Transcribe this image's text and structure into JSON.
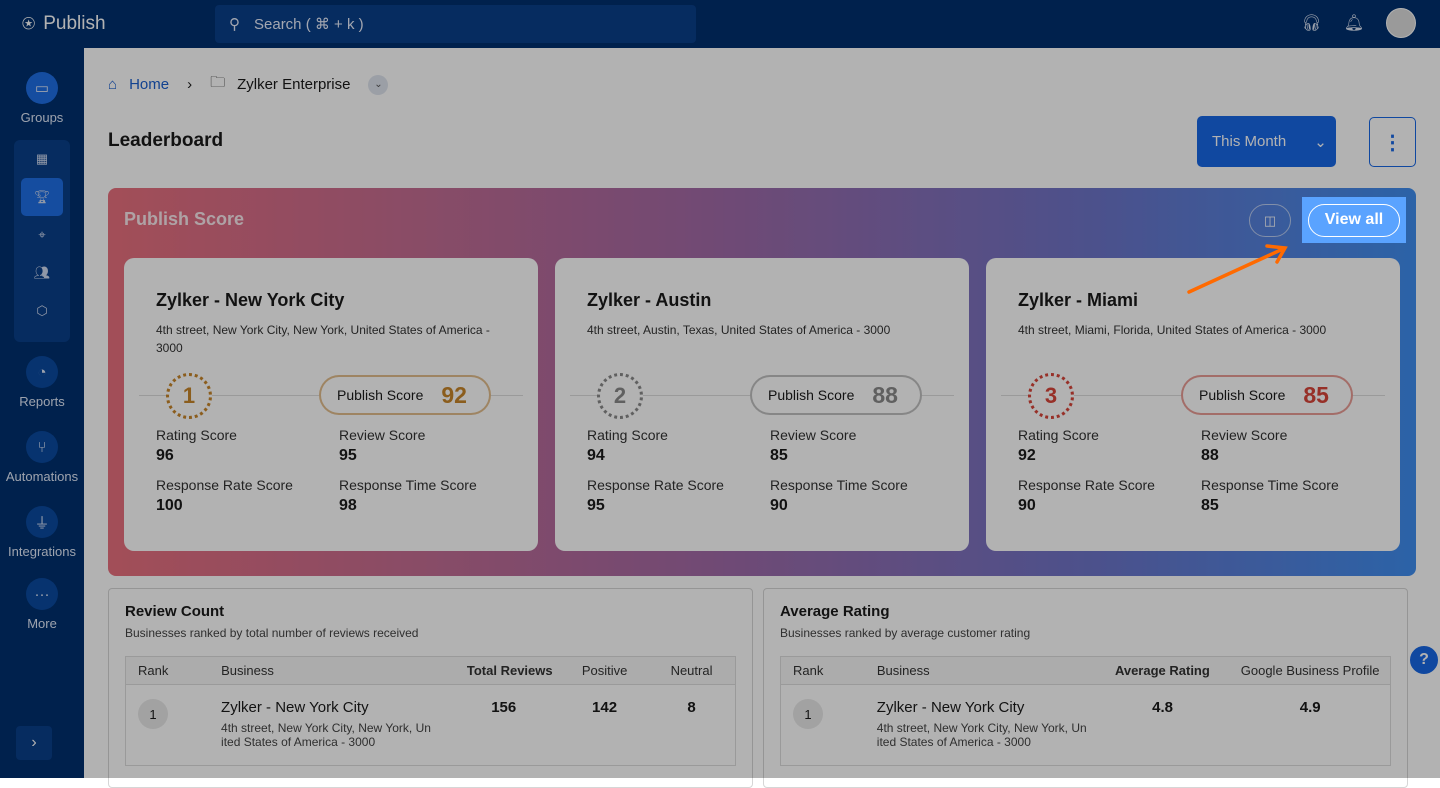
{
  "app": {
    "name": "Publish"
  },
  "search": {
    "placeholder": "Search ( ⌘ + k )"
  },
  "sidebar": {
    "items": [
      {
        "label": "Groups"
      },
      {
        "label": "Reports"
      },
      {
        "label": "Automations"
      },
      {
        "label": "Integrations"
      },
      {
        "label": "More"
      }
    ]
  },
  "breadcrumb": {
    "home": "Home",
    "current": "Zylker Enterprise"
  },
  "page": {
    "title": "Leaderboard",
    "period": "This Month"
  },
  "publish_score": {
    "title": "Publish Score",
    "view_all": "View all",
    "score_label": "Publish Score",
    "metric_labels": [
      "Rating Score",
      "Review Score",
      "Response Rate Score",
      "Response Time Score"
    ],
    "cards": [
      {
        "rank": "1",
        "name": "Zylker - New York City",
        "address": "4th street, New York City, New York, United States of America - 3000",
        "score": "92",
        "metrics": [
          "96",
          "95",
          "100",
          "98"
        ],
        "color": "#c8862a"
      },
      {
        "rank": "2",
        "name": "Zylker - Austin",
        "address": "4th street, Austin, Texas, United States of America - 3000",
        "score": "88",
        "metrics": [
          "94",
          "85",
          "95",
          "90"
        ],
        "color": "#8a8a8a"
      },
      {
        "rank": "3",
        "name": "Zylker - Miami",
        "address": "4th street, Miami, Florida, United States of America - 3000",
        "score": "85",
        "metrics": [
          "92",
          "88",
          "90",
          "85"
        ],
        "color": "#d8453a"
      }
    ]
  },
  "review_count": {
    "title": "Review Count",
    "subtitle": "Businesses ranked by total number of reviews received",
    "columns": [
      "Rank",
      "Business",
      "Total Reviews",
      "Positive",
      "Neutral"
    ],
    "rows": [
      {
        "rank": "1",
        "business": "Zylker - New York City",
        "address": "4th street, New York City, New York, Un ited States of America - 3000",
        "total": "156",
        "positive": "142",
        "neutral": "8"
      }
    ]
  },
  "average_rating": {
    "title": "Average Rating",
    "subtitle": "Businesses ranked by average customer rating",
    "columns": [
      "Rank",
      "Business",
      "Average Rating",
      "Google Business Profile"
    ],
    "rows": [
      {
        "rank": "1",
        "business": "Zylker - New York City",
        "address": "4th street, New York City, New York, Un ited States of America - 3000",
        "avg": "4.8",
        "gbp": "4.9"
      }
    ]
  }
}
